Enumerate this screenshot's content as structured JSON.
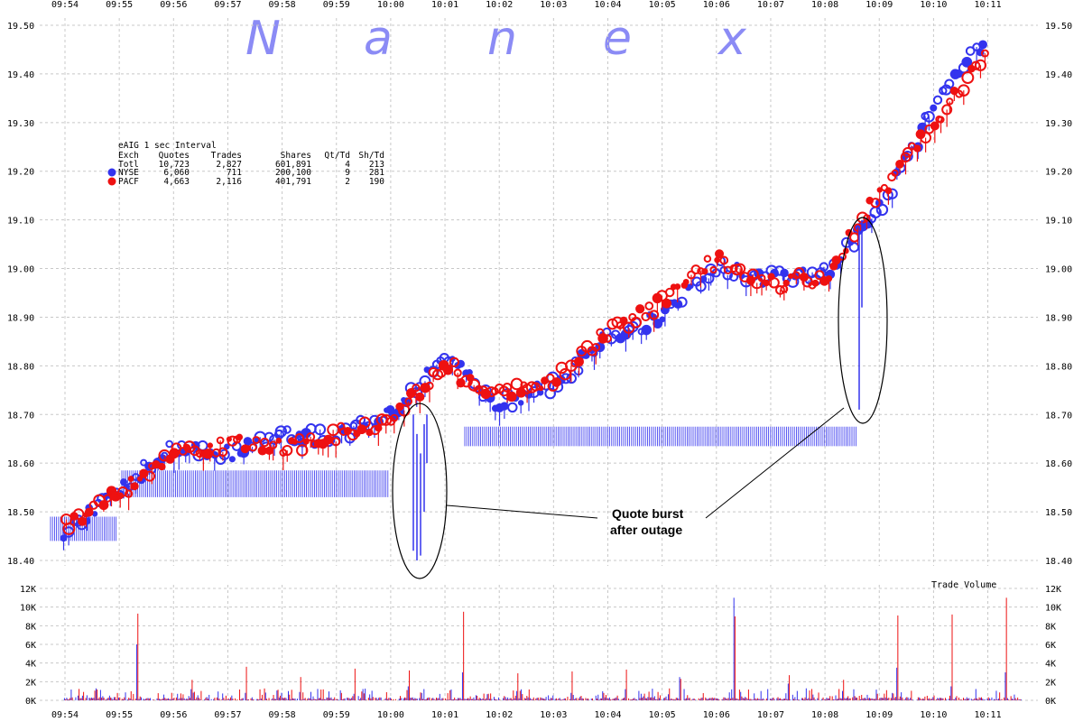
{
  "watermark": [
    "N",
    "a",
    "n",
    "e",
    "x"
  ],
  "colors": {
    "nyse": "#3333ee",
    "pacf": "#ee1111",
    "grid": "#c8c8c8",
    "watermark": "#8b8bf5"
  },
  "info_table": {
    "title": "eAIG 1 sec Interval",
    "headers": [
      "Exch",
      "Quotes",
      "Trades",
      "Shares",
      "Qt/Td",
      "Sh/Td"
    ],
    "rows": [
      {
        "exch": "Totl",
        "quotes": "10,723",
        "trades": "2,827",
        "shares": "601,891",
        "qt_td": "4",
        "sh_td": "213",
        "marker": "none"
      },
      {
        "exch": "NYSE",
        "quotes": "6,060",
        "trades": "711",
        "shares": "200,100",
        "qt_td": "9",
        "sh_td": "281",
        "marker": "nyse"
      },
      {
        "exch": "PACF",
        "quotes": "4,663",
        "trades": "2,116",
        "shares": "401,791",
        "qt_td": "2",
        "sh_td": "190",
        "marker": "pacf"
      }
    ]
  },
  "annotation": {
    "line1": "Quote burst",
    "line2": "after outage"
  },
  "volume_label": "Trade Volume",
  "chart_data": [
    {
      "type": "scatter",
      "x_ticks": [
        "09:54",
        "09:55",
        "09:56",
        "09:57",
        "09:58",
        "09:59",
        "10:00",
        "10:01",
        "10:02",
        "10:03",
        "10:04",
        "10:05",
        "10:06",
        "10:07",
        "10:08",
        "10:09",
        "10:10",
        "10:11"
      ],
      "y_ticks": [
        "18.40",
        "18.50",
        "18.60",
        "18.70",
        "18.80",
        "18.90",
        "19.00",
        "19.10",
        "19.20",
        "19.30",
        "19.40",
        "19.50"
      ],
      "ylim": [
        18.4,
        19.5
      ],
      "grid": true,
      "series": [
        {
          "name": "NYSE",
          "color": "#3333ee",
          "x": [
            "09:54",
            "09:55",
            "09:56",
            "09:57",
            "09:58",
            "09:59",
            "10:00",
            "10:01",
            "10:02",
            "10:03",
            "10:04",
            "10:05",
            "10:06",
            "10:07",
            "10:08",
            "10:09",
            "10:10",
            "10:11"
          ],
          "values": [
            18.46,
            18.55,
            18.63,
            18.62,
            18.66,
            18.65,
            18.7,
            18.82,
            18.72,
            18.76,
            18.86,
            18.9,
            19.0,
            18.98,
            18.99,
            19.12,
            19.33,
            19.48
          ]
        },
        {
          "name": "PACF",
          "color": "#ee1111",
          "x": [
            "09:54",
            "09:55",
            "09:56",
            "09:57",
            "09:58",
            "09:59",
            "10:00",
            "10:01",
            "10:02",
            "10:03",
            "10:04",
            "10:05",
            "10:06",
            "10:07",
            "10:08",
            "10:09",
            "10:10",
            "10:11"
          ],
          "values": [
            18.47,
            18.54,
            18.62,
            18.64,
            18.63,
            18.66,
            18.69,
            18.8,
            18.74,
            18.77,
            18.87,
            18.93,
            19.02,
            18.97,
            18.98,
            19.15,
            19.3,
            19.44
          ]
        }
      ]
    },
    {
      "type": "bar",
      "x_ticks": [
        "09:54",
        "09:55",
        "09:56",
        "09:57",
        "09:58",
        "09:59",
        "10:00",
        "10:01",
        "10:02",
        "10:03",
        "10:04",
        "10:05",
        "10:06",
        "10:07",
        "10:08",
        "10:09",
        "10:10",
        "10:11"
      ],
      "y_ticks": [
        "0K",
        "2K",
        "4K",
        "6K",
        "8K",
        "10K",
        "12K"
      ],
      "ylim": [
        0,
        12000
      ],
      "grid": true,
      "ylabel": "Trade Volume",
      "series": [
        {
          "name": "NYSE",
          "color": "#3333ee",
          "x": [
            "09:54",
            "09:55",
            "09:56",
            "09:57",
            "09:58",
            "09:59",
            "10:00",
            "10:01",
            "10:02",
            "10:03",
            "10:04",
            "10:05",
            "10:06",
            "10:07",
            "10:08",
            "10:09",
            "10:10",
            "10:11"
          ],
          "values": [
            500,
            6000,
            1200,
            800,
            900,
            700,
            1500,
            3000,
            1000,
            800,
            1200,
            2500,
            11000,
            1800,
            1000,
            3500,
            1500,
            3000
          ]
        },
        {
          "name": "PACF",
          "color": "#ee1111",
          "x": [
            "09:54",
            "09:55",
            "09:56",
            "09:57",
            "09:58",
            "09:59",
            "10:00",
            "10:01",
            "10:02",
            "10:03",
            "10:04",
            "10:05",
            "10:06",
            "10:07",
            "10:08",
            "10:09",
            "10:10",
            "10:11"
          ],
          "values": [
            900,
            9300,
            2200,
            3600,
            2500,
            3400,
            3200,
            9500,
            2900,
            3100,
            3300,
            2300,
            9000,
            2700,
            2200,
            9100,
            9200,
            11000
          ]
        }
      ]
    }
  ]
}
